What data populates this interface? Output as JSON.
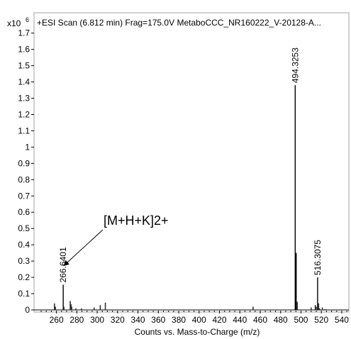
{
  "chart_data": {
    "type": "bar",
    "title": "+ESI Scan (6.812 min) Frag=175.0V MetaboCCC_NR160222_V-20128-A...",
    "y_multiplier_label": "x10",
    "y_multiplier_exponent": "6",
    "xlabel": "Counts vs. Mass-to-Charge (m/z)",
    "ylabel": "",
    "xlim": [
      238,
      547
    ],
    "ylim": [
      0,
      1.79
    ],
    "x_ticks": [
      260,
      280,
      300,
      320,
      340,
      360,
      380,
      400,
      420,
      440,
      460,
      480,
      500,
      520,
      540
    ],
    "y_ticks": [
      0,
      0.1,
      0.2,
      0.3,
      0.4,
      0.5,
      0.6,
      0.7,
      0.8,
      0.9,
      1,
      1.1,
      1.2,
      1.3,
      1.4,
      1.5,
      1.6,
      1.7
    ],
    "y_tick_labels": [
      "0",
      "0.1",
      "0.2",
      "0.3",
      "0.4",
      "0.5",
      "0.6",
      "0.7",
      "0.8",
      "0.9",
      "1",
      "1.1",
      "1.2",
      "1.3",
      "1.4",
      "1.5",
      "1.6",
      "1.7"
    ],
    "peaks": [
      {
        "mz": 258.0,
        "intensity": 0.04
      },
      {
        "mz": 259.0,
        "intensity": 0.02
      },
      {
        "mz": 266.6401,
        "intensity": 0.155,
        "label": "266.6401"
      },
      {
        "mz": 267.3,
        "intensity": 0.02
      },
      {
        "mz": 273.5,
        "intensity": 0.055
      },
      {
        "mz": 274.3,
        "intensity": 0.035
      },
      {
        "mz": 275.0,
        "intensity": 0.02
      },
      {
        "mz": 279.0,
        "intensity": 0.01
      },
      {
        "mz": 284.5,
        "intensity": 0.01
      },
      {
        "mz": 297.0,
        "intensity": 0.015
      },
      {
        "mz": 303.0,
        "intensity": 0.03
      },
      {
        "mz": 308.0,
        "intensity": 0.045
      },
      {
        "mz": 453.0,
        "intensity": 0.02
      },
      {
        "mz": 494.3253,
        "intensity": 1.38,
        "label": "494.3253"
      },
      {
        "mz": 495.3,
        "intensity": 0.35
      },
      {
        "mz": 496.3,
        "intensity": 0.05
      },
      {
        "mz": 510.0,
        "intensity": 0.015
      },
      {
        "mz": 514.0,
        "intensity": 0.03
      },
      {
        "mz": 515.0,
        "intensity": 0.02
      },
      {
        "mz": 516.3075,
        "intensity": 0.2,
        "label": "516.3075"
      },
      {
        "mz": 517.3,
        "intensity": 0.04
      },
      {
        "mz": 518.3,
        "intensity": 0.01
      },
      {
        "mz": 521.0,
        "intensity": 0.015
      },
      {
        "mz": 524.0,
        "intensity": 0.005
      }
    ],
    "annotation": {
      "text": "[M+H+K]2+",
      "target_mz": 266.6401,
      "target_intensity": 0.155
    }
  }
}
